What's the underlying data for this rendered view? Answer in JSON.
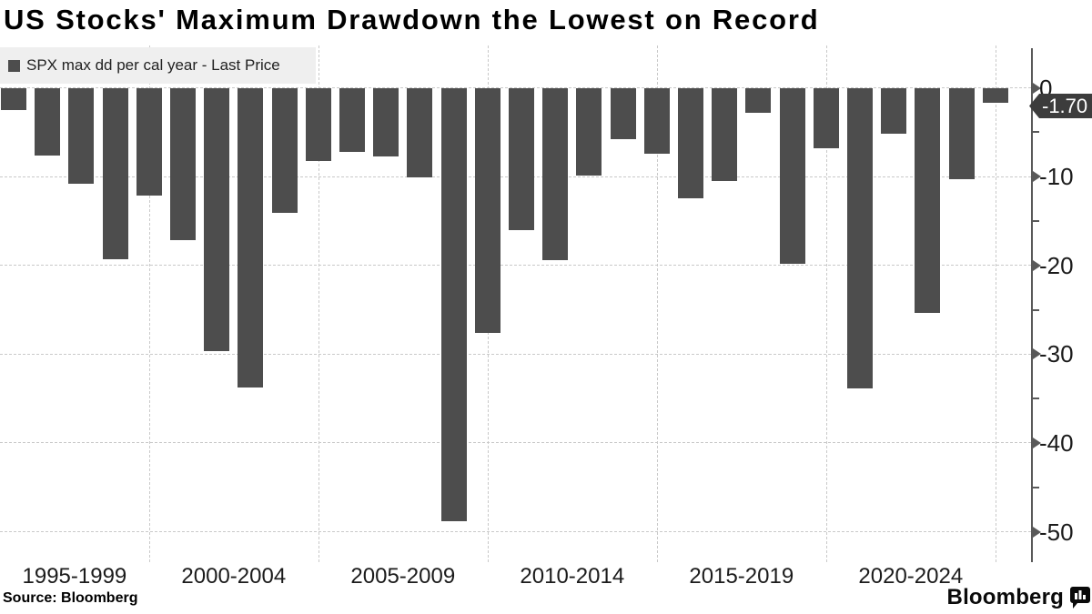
{
  "title": "US Stocks' Maximum Drawdown the Lowest on Record",
  "legend": {
    "marker_icon": "filled-square",
    "label": "SPX max dd per cal year - Last Price"
  },
  "last_price_label": "-1.70",
  "source": "Source: Bloomberg",
  "branding": {
    "logo_text": "Bloomberg",
    "logo_icon": "bloomberg-chart-bubble"
  },
  "colors": {
    "bar": "#4d4d4d",
    "badge_bg": "#3c3c3c",
    "badge_text": "#ffffff",
    "legend_bg": "#efefef",
    "gridline": "#c9c9c9",
    "axis": "#595959",
    "label_text": "#1b1b1b",
    "title_text": "#000000"
  },
  "chart_data": {
    "type": "bar",
    "title": "US Stocks' Maximum Drawdown the Lowest on Record",
    "series": [
      {
        "name": "SPX max dd per cal year - Last Price",
        "x": [
          1995,
          1996,
          1997,
          1998,
          1999,
          2000,
          2001,
          2002,
          2003,
          2004,
          2005,
          2006,
          2007,
          2008,
          2009,
          2010,
          2011,
          2012,
          2013,
          2014,
          2015,
          2016,
          2017,
          2018,
          2019,
          2020,
          2021,
          2022,
          2023,
          2024
        ],
        "values": [
          -2.5,
          -7.6,
          -10.8,
          -19.3,
          -12.1,
          -17.2,
          -29.7,
          -33.8,
          -14.1,
          -8.2,
          -7.2,
          -7.7,
          -10.1,
          -48.8,
          -27.6,
          -16.0,
          -19.4,
          -9.9,
          -5.8,
          -7.4,
          -12.4,
          -10.5,
          -2.8,
          -19.8,
          -6.8,
          -33.9,
          -5.2,
          -25.4,
          -10.3,
          -1.7
        ]
      }
    ],
    "x_group_labels": [
      "1995-1999",
      "2000-2004",
      "2005-2009",
      "2010-2014",
      "2015-2019",
      "2020-2024"
    ],
    "y_ticks": [
      0,
      -10,
      -20,
      -30,
      -40,
      -50
    ],
    "y_tick_labels": [
      "0",
      "-10",
      "-20",
      "-30",
      "-40",
      "-50"
    ],
    "y_minor_ticks": [
      -5,
      -15,
      -25,
      -35,
      -45
    ],
    "ylim": [
      -53.5,
      0
    ],
    "y_unit": "percent",
    "grid": true,
    "legend_position": "top-left",
    "last_price": -1.7
  }
}
